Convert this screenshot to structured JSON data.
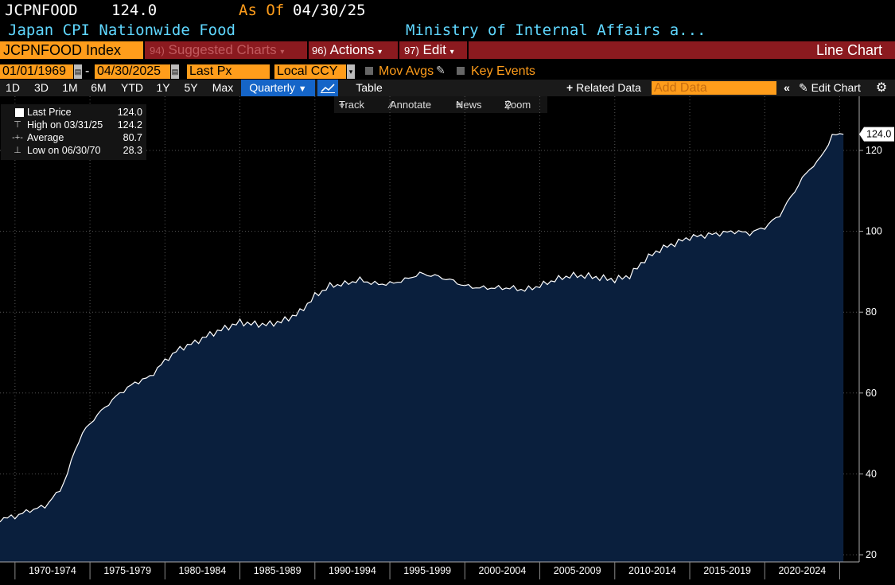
{
  "header": {
    "ticker": "JCPNFOOD",
    "price": "124.0",
    "as_of_label": "As Of",
    "as_of_date": "04/30/25",
    "description": "Japan CPI Nationwide Food",
    "source": "Ministry of Internal Affairs a..."
  },
  "toolbar": {
    "security": "JCPNFOOD Index",
    "suggested_num": "94)",
    "suggested_label": "Suggested Charts",
    "actions_num": "96)",
    "actions_label": "Actions",
    "edit_num": "97)",
    "edit_label": "Edit",
    "chart_type": "Line Chart"
  },
  "params": {
    "start_date": "01/01/1969",
    "end_date": "04/30/2025",
    "field": "Last Px",
    "currency": "Local CCY",
    "mov_avgs": "Mov Avgs",
    "key_events": "Key Events"
  },
  "periods": {
    "items": [
      "1D",
      "3D",
      "1M",
      "6M",
      "YTD",
      "1Y",
      "5Y",
      "Max"
    ],
    "frequency": "Quarterly",
    "table": "Table",
    "related": "Related Data",
    "add_data_placeholder": "Add Data",
    "edit_chart": "Edit Chart"
  },
  "tools": {
    "track": "Track",
    "annotate": "Annotate",
    "news": "News",
    "zoom": "Zoom"
  },
  "legend": {
    "last_label": "Last Price",
    "last_value": "124.0",
    "high_label": "High on 03/31/25",
    "high_value": "124.2",
    "avg_label": "Average",
    "avg_value": "80.7",
    "low_label": "Low on 06/30/70",
    "low_value": "28.3"
  },
  "colors": {
    "accent": "#ff9d1b",
    "fill": "#0a1f3d",
    "line": "#ffffff",
    "banner": "#8b1a1f",
    "cyan": "#5fd7ff"
  },
  "chart_data": {
    "type": "area",
    "title": "JCPNFOOD Index",
    "ylabel": "",
    "ylim": [
      20,
      126
    ],
    "yticks": [
      20,
      40,
      60,
      80,
      100,
      120
    ],
    "last_value_label": "124.0",
    "x_period_labels": [
      "1970-1974",
      "1975-1979",
      "1980-1984",
      "1985-1989",
      "1990-1994",
      "1995-1999",
      "2000-2004",
      "2005-2009",
      "2010-2014",
      "2015-2019",
      "2020-2024"
    ],
    "x": [
      1969.0,
      1970.0,
      1971.0,
      1972.0,
      1973.0,
      1973.5,
      1974.0,
      1974.5,
      1975.0,
      1976.0,
      1977.0,
      1978.0,
      1979.0,
      1980.0,
      1981.0,
      1982.0,
      1983.0,
      1984.0,
      1985.0,
      1986.0,
      1987.0,
      1988.0,
      1989.0,
      1990.0,
      1991.0,
      1992.0,
      1993.0,
      1994.0,
      1995.0,
      1996.0,
      1997.0,
      1998.0,
      1999.0,
      2000.0,
      2001.0,
      2002.0,
      2003.0,
      2004.0,
      2005.0,
      2006.0,
      2007.0,
      2008.0,
      2009.0,
      2010.0,
      2011.0,
      2012.0,
      2013.0,
      2014.0,
      2015.0,
      2016.0,
      2017.0,
      2018.0,
      2019.0,
      2020.0,
      2021.0,
      2022.0,
      2022.5,
      2023.0,
      2023.5,
      2024.0,
      2024.5,
      2025.0,
      2025.25
    ],
    "values": [
      28.8,
      29.5,
      31.0,
      32.0,
      36.0,
      40.0,
      46.0,
      50.0,
      52.5,
      56.5,
      60.0,
      62.5,
      64.0,
      68.0,
      71.0,
      72.5,
      74.5,
      76.0,
      77.5,
      77.0,
      77.0,
      78.0,
      80.0,
      84.0,
      86.5,
      87.0,
      88.0,
      87.0,
      87.0,
      88.0,
      89.5,
      89.0,
      88.0,
      86.5,
      86.0,
      86.0,
      86.0,
      85.5,
      86.5,
      88.0,
      89.0,
      89.0,
      88.5,
      88.0,
      89.0,
      93.0,
      95.5,
      97.0,
      98.5,
      99.0,
      99.5,
      100.0,
      99.5,
      101.0,
      104.0,
      110.0,
      113.0,
      115.5,
      117.0,
      120.0,
      123.5,
      124.2,
      124.0
    ]
  }
}
